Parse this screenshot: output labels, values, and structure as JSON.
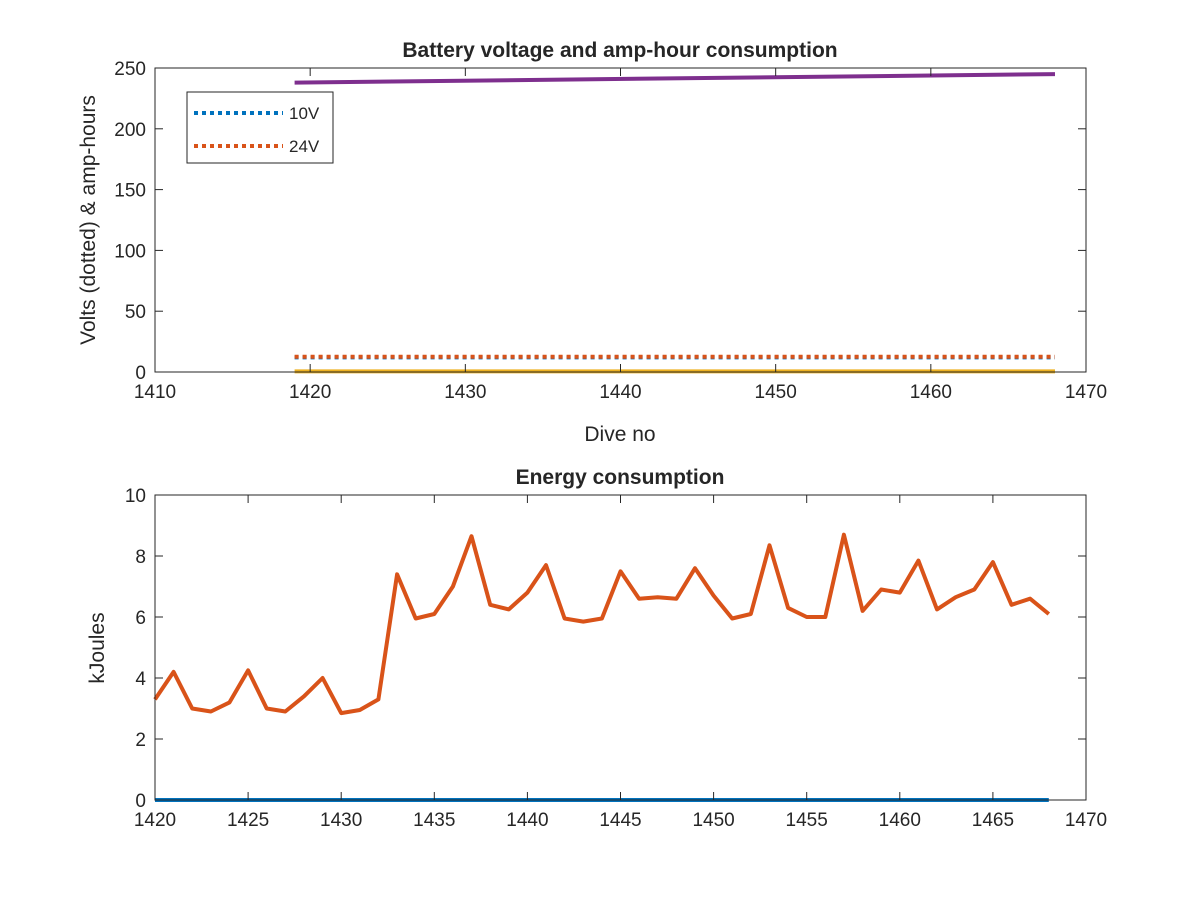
{
  "colors": {
    "background": "#ffffff",
    "axis": "#262626",
    "series_blue": "#0072bd",
    "series_orange": "#d95319",
    "series_yellow": "#edb120",
    "series_purple": "#7e2f8e"
  },
  "chart_data": [
    {
      "type": "line",
      "title": "Battery voltage and amp-hour consumption",
      "xlabel": "Dive no",
      "ylabel": "Volts (dotted) & amp-hours",
      "xlim": [
        1410,
        1470
      ],
      "ylim": [
        0,
        250
      ],
      "xticks": [
        "1410",
        "1420",
        "1430",
        "1440",
        "1450",
        "1460",
        "1470"
      ],
      "yticks": [
        "0",
        "50",
        "100",
        "150",
        "200",
        "250"
      ],
      "grid": false,
      "legend_position": "top-left",
      "series": [
        {
          "name": "10V",
          "style": "dotted",
          "color": "#0072bd",
          "x": [
            1419,
            1468
          ],
          "values": [
            12,
            12
          ]
        },
        {
          "name": "24V",
          "style": "dotted",
          "color": "#d95319",
          "x": [
            1419,
            1468
          ],
          "values": [
            12.5,
            12.5
          ]
        },
        {
          "style": "solid",
          "color": "#edb120",
          "x": [
            1419,
            1468
          ],
          "values": [
            0.5,
            0.5
          ]
        },
        {
          "style": "solid",
          "color": "#7e2f8e",
          "x": [
            1419,
            1468
          ],
          "values": [
            238,
            245
          ]
        }
      ]
    },
    {
      "type": "line",
      "title": "Energy consumption",
      "xlabel": "",
      "ylabel": "kJoules",
      "xlim": [
        1420,
        1470
      ],
      "ylim": [
        0,
        10
      ],
      "xticks": [
        "1420",
        "1425",
        "1430",
        "1435",
        "1440",
        "1445",
        "1450",
        "1455",
        "1460",
        "1465",
        "1470"
      ],
      "yticks": [
        "0",
        "2",
        "4",
        "6",
        "8",
        "10"
      ],
      "grid": false,
      "series": [
        {
          "style": "solid",
          "color": "#d95319",
          "x": [
            1420,
            1421,
            1422,
            1423,
            1424,
            1425,
            1426,
            1427,
            1428,
            1429,
            1430,
            1431,
            1432,
            1433,
            1434,
            1435,
            1436,
            1437,
            1438,
            1439,
            1440,
            1441,
            1442,
            1443,
            1444,
            1445,
            1446,
            1447,
            1448,
            1449,
            1450,
            1451,
            1452,
            1453,
            1454,
            1455,
            1456,
            1457,
            1458,
            1459,
            1460,
            1461,
            1462,
            1463,
            1464,
            1465,
            1466,
            1467,
            1468
          ],
          "values": [
            3.3,
            4.2,
            3.0,
            2.9,
            3.2,
            4.25,
            3.0,
            2.9,
            3.4,
            4.0,
            2.85,
            2.95,
            3.3,
            7.4,
            5.95,
            6.1,
            7.0,
            8.65,
            6.4,
            6.25,
            6.8,
            7.7,
            5.95,
            5.85,
            5.95,
            7.5,
            6.6,
            6.65,
            6.6,
            7.6,
            6.7,
            5.95,
            6.1,
            8.35,
            6.3,
            6.0,
            6.0,
            8.7,
            6.2,
            6.9,
            6.8,
            7.85,
            6.25,
            6.65,
            6.9,
            7.8,
            6.4,
            6.6,
            6.1
          ]
        },
        {
          "style": "solid",
          "color": "#0072bd",
          "x": [
            1420,
            1468
          ],
          "values": [
            0,
            0
          ]
        }
      ]
    }
  ]
}
